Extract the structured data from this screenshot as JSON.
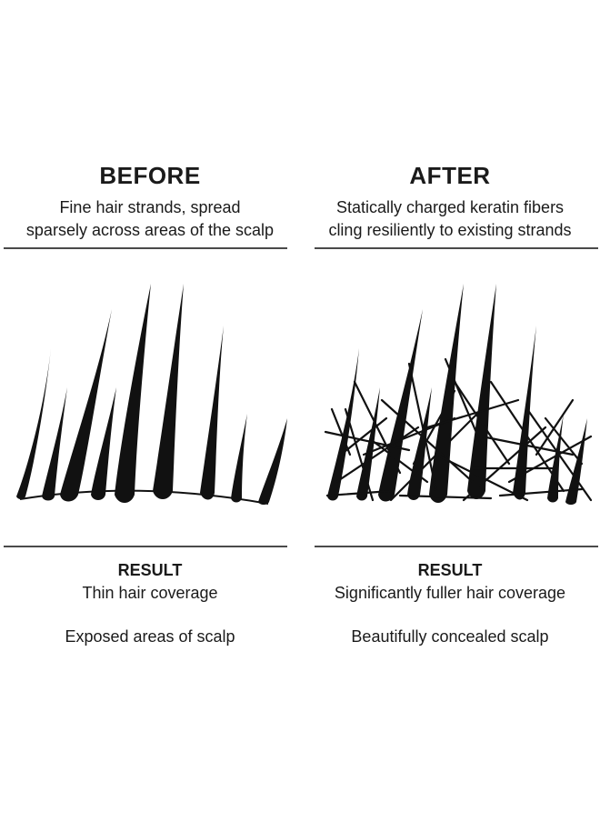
{
  "before": {
    "heading": "BEFORE",
    "description_line1": "Fine hair strands, spread",
    "description_line2": "sparsely across areas of the scalp",
    "result_label": "RESULT",
    "result_line1": "Thin hair coverage",
    "result_line2": "Exposed areas of scalp"
  },
  "after": {
    "heading": "AFTER",
    "description_line1": "Statically charged keratin fibers",
    "description_line2": "cling resiliently to existing strands",
    "result_label": "RESULT",
    "result_line1": "Significantly fuller hair coverage",
    "result_line2": "Beautifully concealed scalp"
  },
  "colors": {
    "ink": "#111111",
    "rule": "#4a4a4a",
    "background": "#ffffff"
  }
}
